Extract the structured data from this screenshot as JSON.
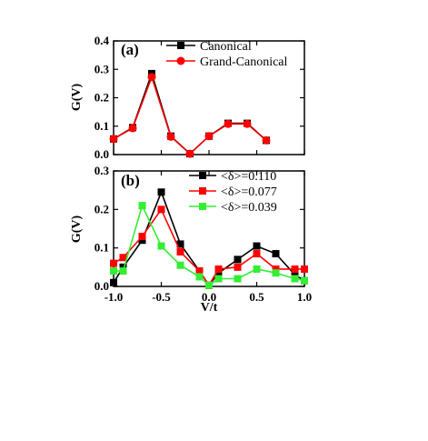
{
  "chart_data": [
    {
      "type": "line",
      "panel_label": "(a)",
      "xlabel": "",
      "ylabel": "G(V)",
      "xlim": [
        -1.0,
        1.0
      ],
      "ylim": [
        0.0,
        0.4
      ],
      "yticks": [
        "0.0",
        "0.1",
        "0.2",
        "0.3",
        "0.4"
      ],
      "x_tick_labels_shown": false,
      "legend": "top-right",
      "series": [
        {
          "name": "Canonical",
          "color": "#000000",
          "marker": "square",
          "x": [
            -1.0,
            -0.8,
            -0.6,
            -0.4,
            -0.2,
            0.0,
            0.2,
            0.4,
            0.6,
            0.8,
            1.0
          ],
          "y": [
            0.055,
            0.095,
            0.285,
            0.065,
            0.003,
            0.065,
            0.11,
            0.11,
            0.05,
            null,
            null
          ]
        },
        {
          "name": "Grand-Canonical",
          "color": "#ff0000",
          "marker": "circle",
          "x": [
            -1.0,
            -0.8,
            -0.6,
            -0.4,
            -0.2,
            0.0,
            0.2,
            0.4,
            0.6,
            0.8,
            1.0
          ],
          "y": [
            0.055,
            0.093,
            0.273,
            0.063,
            0.003,
            0.065,
            0.108,
            0.108,
            0.05,
            null,
            null
          ]
        }
      ]
    },
    {
      "type": "line",
      "panel_label": "(b)",
      "xlabel": "V/t",
      "ylabel": "G(V)",
      "xlim": [
        -1.0,
        1.0
      ],
      "ylim": [
        0.0,
        0.3
      ],
      "yticks": [
        "0.0",
        "0.1",
        "0.2",
        "0.3"
      ],
      "xticks": [
        "-1.0",
        "-0.5",
        "0.0",
        "0.5",
        "1.0"
      ],
      "legend": "top-right",
      "series": [
        {
          "name": "<δ>=0.110",
          "color": "#000000",
          "marker": "square",
          "x": [
            -1.0,
            -0.9,
            -0.7,
            -0.5,
            -0.3,
            -0.1,
            0.0,
            0.1,
            0.3,
            0.5,
            0.7,
            0.9,
            1.0
          ],
          "y": [
            0.01,
            0.05,
            0.12,
            0.245,
            0.11,
            0.04,
            0.003,
            0.035,
            0.07,
            0.105,
            0.085,
            0.03,
            0.015
          ]
        },
        {
          "name": "<δ>=0.077",
          "color": "#ff0000",
          "marker": "square",
          "x": [
            -1.0,
            -0.9,
            -0.7,
            -0.5,
            -0.3,
            -0.1,
            0.0,
            0.1,
            0.3,
            0.5,
            0.7,
            0.9,
            1.0
          ],
          "y": [
            0.06,
            0.075,
            0.13,
            0.2,
            0.09,
            0.04,
            0.003,
            0.045,
            0.05,
            0.085,
            0.045,
            0.045,
            0.045
          ]
        },
        {
          "name": "<δ>=0.039",
          "color": "#33ee33",
          "marker": "square",
          "x": [
            -1.0,
            -0.9,
            -0.7,
            -0.5,
            -0.3,
            -0.1,
            0.0,
            0.1,
            0.3,
            0.5,
            0.7,
            0.9,
            1.0
          ],
          "y": [
            0.04,
            0.04,
            0.21,
            0.105,
            0.055,
            0.025,
            0.003,
            0.02,
            0.02,
            0.045,
            0.035,
            0.02,
            0.015
          ]
        }
      ]
    }
  ]
}
